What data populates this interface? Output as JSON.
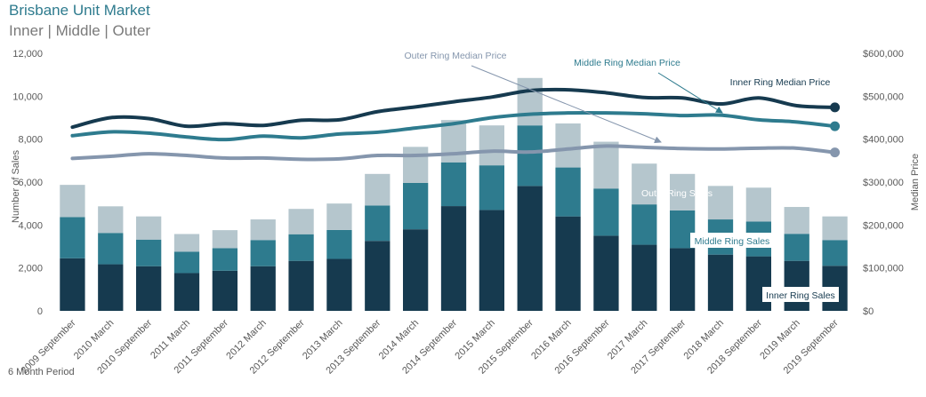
{
  "header": {
    "title": "Brisbane Unit Market",
    "subtitle": "Inner | Middle | Outer"
  },
  "footer": {
    "note": "6 Month Period"
  },
  "colors": {
    "inner": "#163a4f",
    "middle": "#2e7b8e",
    "outer": "#b5c6cd",
    "inner_price": "#163a4f",
    "middle_price": "#2e7b8e",
    "outer_price": "#8596ad",
    "title": "#2e7b8e",
    "grid": "#d9d9d9",
    "text": "#595959"
  },
  "chart_data": {
    "type": "bar",
    "stacked": true,
    "categories": [
      "2009 September",
      "2010 March",
      "2010 September",
      "2011 March",
      "2011 September",
      "2012 March",
      "2012 September",
      "2013 March",
      "2013 September",
      "2014 March",
      "2014 September",
      "2015 March",
      "2015 September",
      "2016 March",
      "2016 September",
      "2017 March",
      "2017 September",
      "2018 March",
      "2018 September",
      "2019 March",
      "2019 September"
    ],
    "series": [
      {
        "name": "Inner Ring Sales",
        "color_key": "inner",
        "values": [
          2450,
          2170,
          2080,
          1760,
          1870,
          2080,
          2330,
          2420,
          3260,
          3800,
          4880,
          4700,
          5820,
          4400,
          3500,
          3080,
          2920,
          2620,
          2540,
          2330,
          2100
        ]
      },
      {
        "name": "Middle Ring Sales",
        "color_key": "middle",
        "values": [
          1920,
          1460,
          1240,
          1000,
          1050,
          1220,
          1240,
          1350,
          1650,
          2160,
          2040,
          2080,
          2820,
          2280,
          2200,
          1880,
          1760,
          1640,
          1620,
          1260,
          1200
        ]
      },
      {
        "name": "Outer Ring Sales",
        "color_key": "outer",
        "values": [
          1500,
          1240,
          1080,
          820,
          840,
          960,
          1180,
          1230,
          1470,
          1680,
          1970,
          1860,
          2210,
          2050,
          2180,
          1900,
          1700,
          1560,
          1580,
          1250,
          1100
        ]
      }
    ],
    "lines": [
      {
        "name": "Inner Ring Median Price",
        "color_key": "inner_price",
        "values": [
          428000,
          450000,
          448000,
          430000,
          436000,
          432000,
          444000,
          445000,
          464000,
          475000,
          487000,
          498000,
          513000,
          515000,
          508000,
          497000,
          496000,
          482000,
          496000,
          478000,
          474000
        ],
        "end_value": 474000
      },
      {
        "name": "Middle Ring Median Price",
        "color_key": "middle_price",
        "values": [
          408000,
          417000,
          414000,
          405000,
          399000,
          407000,
          403000,
          412000,
          416000,
          426000,
          436000,
          450000,
          458000,
          461000,
          461000,
          459000,
          455000,
          456000,
          445000,
          440000,
          430000
        ],
        "end_value": 430000
      },
      {
        "name": "Outer Ring Median Price",
        "color_key": "outer_price",
        "values": [
          355000,
          360000,
          366000,
          362000,
          356000,
          356000,
          353000,
          354000,
          362000,
          362000,
          366000,
          372000,
          370000,
          377000,
          384000,
          381000,
          378000,
          377000,
          379000,
          379000,
          369000
        ],
        "end_value": 369000
      }
    ],
    "ylabel": "Number of Sales",
    "y2label": "Median Price",
    "xlabel": "",
    "ylim": [
      0,
      12000
    ],
    "y2lim": [
      0,
      600000
    ],
    "yticks": [
      "0",
      "2,000",
      "4,000",
      "6,000",
      "8,000",
      "10,000",
      "12,000"
    ],
    "y2ticks": [
      "$0",
      "$100,000",
      "$200,000",
      "$300,000",
      "$400,000",
      "$500,000",
      "$600,000"
    ],
    "grid": false,
    "legend": "inline annotations"
  }
}
